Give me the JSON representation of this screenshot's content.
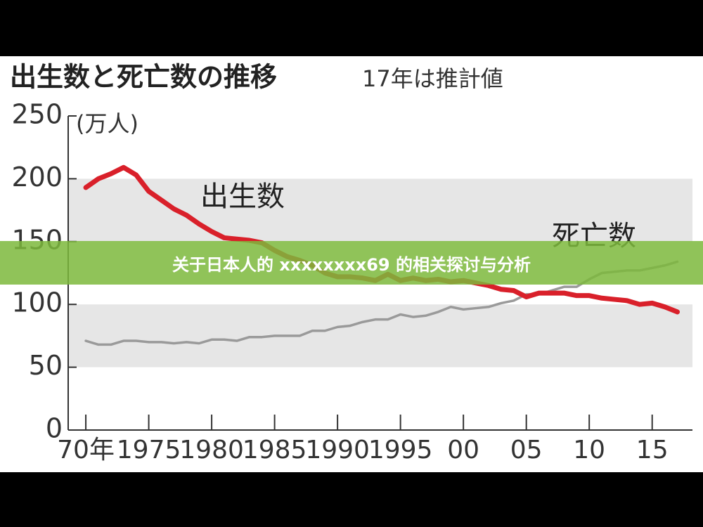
{
  "chart_data": {
    "type": "line",
    "title": "出生数と死亡数の推移",
    "subtitle": "17年は推計値",
    "y_unit_label": "(万人)",
    "x": [
      1970,
      1971,
      1972,
      1973,
      1974,
      1975,
      1976,
      1977,
      1978,
      1979,
      1980,
      1981,
      1982,
      1983,
      1984,
      1985,
      1986,
      1987,
      1988,
      1989,
      1990,
      1991,
      1992,
      1993,
      1994,
      1995,
      1996,
      1997,
      1998,
      1999,
      2000,
      2001,
      2002,
      2003,
      2004,
      2005,
      2006,
      2007,
      2008,
      2009,
      2010,
      2011,
      2012,
      2013,
      2014,
      2015,
      2016,
      2017
    ],
    "series": [
      {
        "name": "出生数",
        "color": "#d9202a",
        "values": [
          193,
          200,
          204,
          209,
          203,
          190,
          183,
          176,
          171,
          164,
          158,
          153,
          152,
          151,
          149,
          143,
          138,
          135,
          131,
          125,
          122,
          122,
          121,
          119,
          124,
          119,
          121,
          119,
          120,
          118,
          119,
          117,
          115,
          112,
          111,
          106,
          109,
          109,
          109,
          107,
          107,
          105,
          104,
          103,
          100,
          101,
          98,
          94
        ]
      },
      {
        "name": "死亡数",
        "color": "#9a9a9a",
        "values": [
          71,
          68,
          68,
          71,
          71,
          70,
          70,
          69,
          70,
          69,
          72,
          72,
          71,
          74,
          74,
          75,
          75,
          75,
          79,
          79,
          82,
          83,
          86,
          88,
          88,
          92,
          90,
          91,
          94,
          98,
          96,
          97,
          98,
          101,
          103,
          108,
          108,
          111,
          114,
          114,
          120,
          125,
          126,
          127,
          127,
          129,
          131,
          134
        ]
      }
    ],
    "xlim": [
      1968.6,
      2018.2
    ],
    "xticks": [
      {
        "value": 1970,
        "label": "70年"
      },
      1975,
      1980,
      1985,
      1990,
      1995,
      {
        "value": 2000,
        "label": "00"
      },
      {
        "value": 2005,
        "label": "05"
      },
      {
        "value": 2010,
        "label": "10"
      },
      {
        "value": 2015,
        "label": "15"
      }
    ],
    "ylim": [
      0,
      250
    ],
    "yticks": [
      0,
      50,
      100,
      150,
      200,
      250
    ],
    "bands": [
      [
        50,
        100
      ],
      [
        150,
        200
      ]
    ],
    "band_color": "#e6e6e6"
  },
  "banner": {
    "text": "关于日本人的 xxxxxxxx69 的相关探讨与分析"
  }
}
